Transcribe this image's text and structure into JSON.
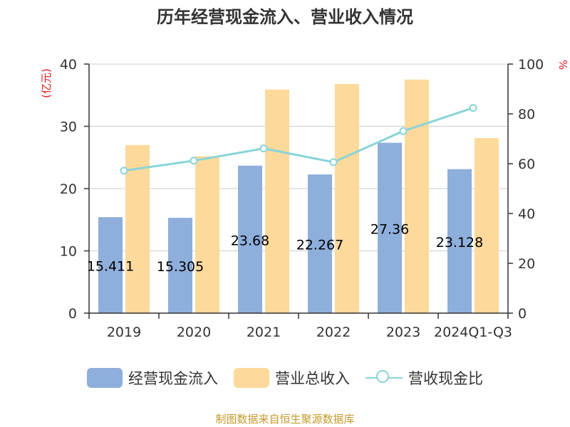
{
  "chart_data": {
    "type": "bar",
    "title": "历年经营现金流入、营业收入情况",
    "categories": [
      "2019",
      "2020",
      "2021",
      "2022",
      "2023",
      "2024Q1-Q3"
    ],
    "left_unit": "(亿元)",
    "right_unit": "%",
    "ylim": [
      0,
      40
    ],
    "yticks": [
      0,
      10,
      20,
      30,
      40
    ],
    "y2lim": [
      0,
      100
    ],
    "y2ticks": [
      0,
      20,
      40,
      60,
      80,
      100
    ],
    "grid": true,
    "series": [
      {
        "name": "经营现金流入",
        "type": "bar",
        "axis": "left",
        "color": "#8eaedb",
        "values": [
          15.411,
          15.305,
          23.68,
          22.267,
          27.36,
          23.128
        ],
        "labels": [
          "15.411",
          "15.305",
          "23.68",
          "22.267",
          "27.36",
          "23.128"
        ]
      },
      {
        "name": "营业总收入",
        "type": "bar",
        "axis": "left",
        "color": "#fdd99b",
        "values": [
          27.0,
          25.2,
          35.9,
          36.8,
          37.5,
          28.1
        ]
      },
      {
        "name": "营收现金比",
        "type": "line",
        "axis": "right",
        "color": "#88d4d9",
        "values": [
          57.2,
          61.2,
          66.1,
          60.6,
          73.1,
          82.4
        ]
      }
    ],
    "legend_position": "bottom"
  },
  "source": "制图数据来自恒生聚源数据库"
}
